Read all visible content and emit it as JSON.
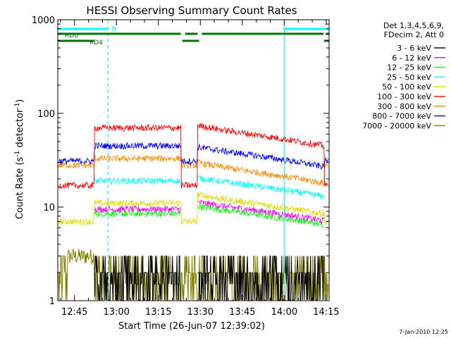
{
  "chart_data": {
    "type": "line",
    "title": "HESSI Observing Summary Count Rates",
    "xlabel": "Start Time (26-Jun-07 12:39:02)",
    "ylabel_main": "Count Rate (s",
    "ylabel_sup1": "-1",
    "ylabel_mid": " detector",
    "ylabel_sup2": "-1",
    "ylabel_end": ")",
    "footer": "7-Jan-2010 12:25",
    "y_scale": "log",
    "ylim": [
      1,
      1000
    ],
    "xlim_minutes": [
      0,
      97
    ],
    "y_ticks": [
      {
        "value": 1,
        "label": "1"
      },
      {
        "value": 10,
        "label": "10"
      },
      {
        "value": 100,
        "label": "100"
      },
      {
        "value": 1000,
        "label": "1000"
      }
    ],
    "x_ticks": [
      {
        "minute": 5.97,
        "label": "12:45"
      },
      {
        "minute": 20.97,
        "label": "13:00"
      },
      {
        "minute": 35.97,
        "label": "13:15"
      },
      {
        "minute": 50.97,
        "label": "13:30"
      },
      {
        "minute": 65.97,
        "label": "13:45"
      },
      {
        "minute": 80.97,
        "label": "14:00"
      },
      {
        "minute": 95.97,
        "label": "14:15"
      }
    ],
    "legend_header": [
      "Det 1,3,4,5,6,9,",
      "FDecim 2, Att 0"
    ],
    "series": [
      {
        "name": "3 - 6 keV",
        "color": "#000000"
      },
      {
        "name": "6 - 12 keV",
        "color": "#ff00ff"
      },
      {
        "name": "12 - 25 keV",
        "color": "#00ff00"
      },
      {
        "name": "25 - 50 keV",
        "color": "#00ffff"
      },
      {
        "name": "50 - 100 keV",
        "color": "#dddd00"
      },
      {
        "name": "100 - 300 keV",
        "color": "#ff0000"
      },
      {
        "name": "300 - 800 keV",
        "color": "#ff8c00"
      },
      {
        "name": "800 - 7000 keV",
        "color": "#0000ff"
      },
      {
        "name": "7000 - 20000 keV",
        "color": "#808000"
      }
    ],
    "flags": [
      {
        "label": "N",
        "color": "#00ffff",
        "segments": [
          [
            0,
            18
          ],
          [
            81,
            97
          ]
        ]
      },
      {
        "label": "RD0",
        "color": "#007700",
        "segments": [
          [
            0,
            44
          ],
          [
            45.5,
            50
          ],
          [
            51.5,
            95
          ],
          [
            95.8,
            97
          ]
        ]
      },
      {
        "label": "RD4",
        "color": "#007700",
        "segments": [
          [
            0,
            13
          ],
          [
            44.5,
            50.5
          ],
          [
            95.2,
            97
          ]
        ]
      }
    ],
    "vlines_minutes": [
      18,
      81,
      97
    ]
  }
}
